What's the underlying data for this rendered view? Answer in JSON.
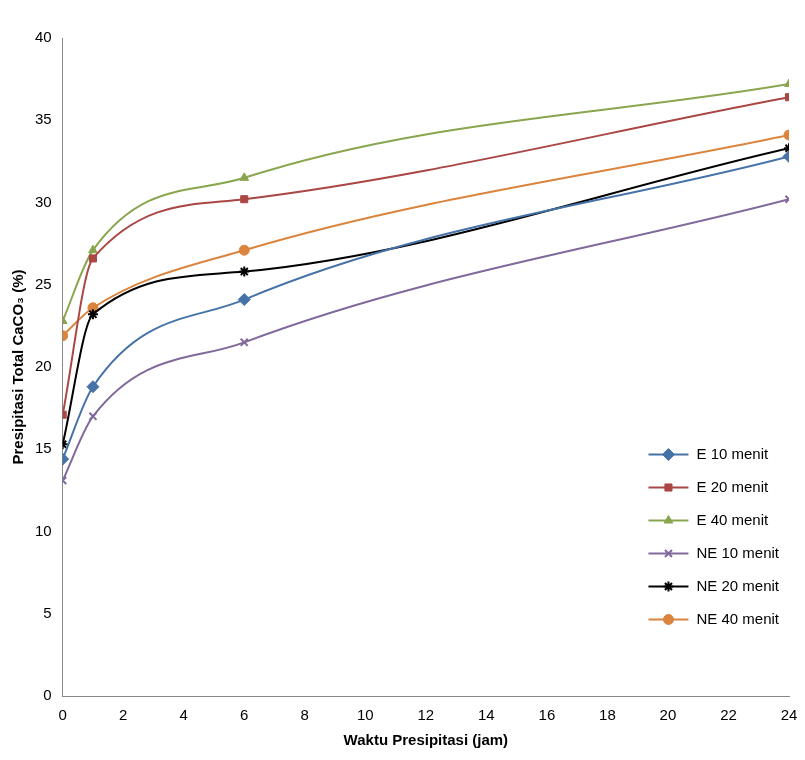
{
  "chart_data": {
    "type": "line",
    "x_label": "Waktu Presipitasi (jam)",
    "y_label": "Presipitasi Total CaCO₃ (%)",
    "xlim": [
      0,
      24
    ],
    "xticks": [
      0,
      2,
      4,
      6,
      8,
      10,
      12,
      14,
      16,
      18,
      20,
      22,
      24
    ],
    "ylim": [
      0,
      40
    ],
    "yticks": [
      0,
      5,
      10,
      15,
      20,
      25,
      30,
      35,
      40
    ],
    "grid": false,
    "legend": "lower right",
    "x": [
      0,
      1,
      6,
      24
    ],
    "series": [
      {
        "name": "E 10 menit",
        "color": "#4572a7",
        "marker": "diamond",
        "values": [
          14.4,
          18.8,
          24.1,
          32.8
        ]
      },
      {
        "name": "E 20 menit",
        "color": "#aa4643",
        "marker": "square",
        "values": [
          17.1,
          26.6,
          30.2,
          36.4
        ]
      },
      {
        "name": "E 40 menit",
        "color": "#89a54e",
        "marker": "triangle",
        "values": [
          22.8,
          27.1,
          31.5,
          37.2
        ]
      },
      {
        "name": "NE 10 menit",
        "color": "#80699b",
        "marker": "x",
        "values": [
          13.1,
          17.0,
          21.5,
          30.2
        ]
      },
      {
        "name": "NE 20 menit",
        "color": "#000000",
        "marker": "star",
        "values": [
          15.3,
          23.2,
          25.8,
          33.3
        ]
      },
      {
        "name": "NE 40 menit",
        "color": "#db843d",
        "marker": "circle",
        "values": [
          21.9,
          23.6,
          27.1,
          34.1
        ]
      }
    ]
  }
}
